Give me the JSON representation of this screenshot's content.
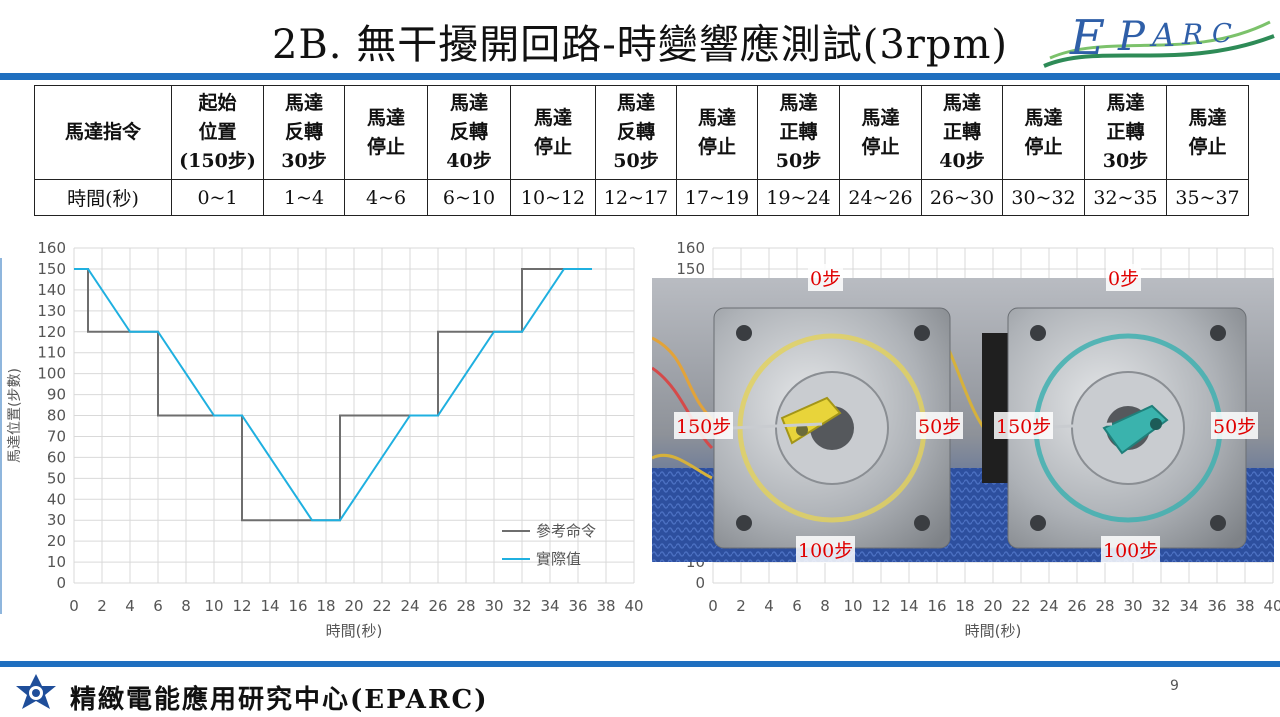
{
  "title": "2B. 無干擾開回路-時變響應測試(3rpm)",
  "logo_text": "EPARC",
  "table": {
    "header": [
      "馬達指令",
      "起始\n位置\n(150步)",
      "馬達\n反轉\n30步",
      "馬達\n停止",
      "馬達\n反轉\n40步",
      "馬達\n停止",
      "馬達\n反轉\n50步",
      "馬達\n停止",
      "馬達\n正轉\n50步",
      "馬達\n停止",
      "馬達\n正轉\n40步",
      "馬達\n停止",
      "馬達\n正轉\n30步",
      "馬達\n停止"
    ],
    "times": [
      "時間(秒)",
      "0~1",
      "1~4",
      "4~6",
      "6~10",
      "10~12",
      "12~17",
      "17~19",
      "19~24",
      "24~26",
      "26~30",
      "30~32",
      "32~35",
      "35~37"
    ]
  },
  "chart_data": [
    {
      "type": "line",
      "xlabel": "時間(秒)",
      "ylabel": "馬達位置(步數)",
      "xlim": [
        0,
        40
      ],
      "ylim": [
        0,
        160
      ],
      "xticks": [
        "0",
        "2",
        "4",
        "6",
        "8",
        "10",
        "12",
        "14",
        "16",
        "18",
        "20",
        "22",
        "24",
        "26",
        "28",
        "30",
        "32",
        "34",
        "36",
        "38",
        "40"
      ],
      "yticks": [
        "0",
        "10",
        "20",
        "30",
        "40",
        "50",
        "60",
        "70",
        "80",
        "90",
        "100",
        "110",
        "120",
        "130",
        "140",
        "150",
        "160"
      ],
      "grid": true,
      "legend": "bottom-right",
      "series": [
        {
          "name": "參考命令",
          "color": "#6e6e6e",
          "x": [
            0,
            1,
            1,
            6,
            6,
            12,
            12,
            19,
            19,
            26,
            26,
            32,
            32,
            37
          ],
          "y": [
            150,
            150,
            120,
            120,
            80,
            80,
            30,
            30,
            80,
            80,
            120,
            120,
            150,
            150
          ]
        },
        {
          "name": "實際值",
          "color": "#1fb0e0",
          "x": [
            0,
            1,
            4,
            6,
            10,
            12,
            17,
            19,
            24,
            26,
            30,
            32,
            35,
            37
          ],
          "y": [
            150,
            150,
            120,
            120,
            80,
            80,
            30,
            30,
            80,
            80,
            120,
            120,
            150,
            150
          ]
        }
      ]
    },
    {
      "type": "line",
      "xlabel": "時間(秒)",
      "ylim": [
        0,
        160
      ],
      "xlim": [
        0,
        40
      ],
      "xticks": [
        "0",
        "2",
        "4",
        "6",
        "8",
        "10",
        "12",
        "14",
        "16",
        "18",
        "20",
        "22",
        "24",
        "26",
        "28",
        "30",
        "32",
        "34",
        "36",
        "38",
        "40"
      ],
      "yticks": [
        "0",
        "10",
        "150",
        "160"
      ],
      "partially_hidden": true
    }
  ],
  "photo_labels": {
    "left": {
      "top": "0步",
      "left": "150步",
      "right": "50步",
      "bottom": "100步"
    },
    "right": {
      "top": "0步",
      "left": "150步",
      "right": "50步",
      "bottom": "100步"
    }
  },
  "footer": {
    "org": "精緻電能應用研究中心(EPARC)",
    "page": "9"
  },
  "colors": {
    "accent": "#1f6fbf",
    "reference": "#6e6e6e",
    "actual": "#1fb0e0",
    "label_red": "#e00000"
  }
}
